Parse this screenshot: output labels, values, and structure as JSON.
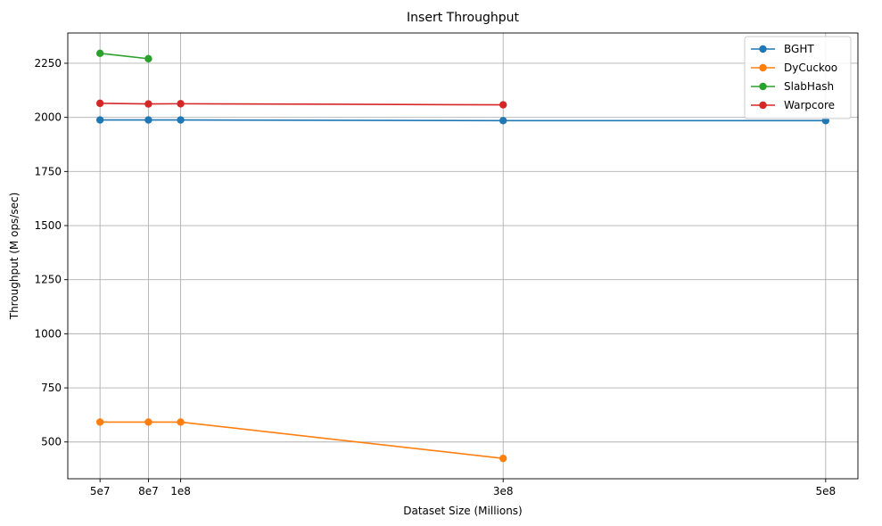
{
  "chart_data": {
    "type": "line",
    "title": "Insert Throughput",
    "xlabel": "Dataset Size (Millions)",
    "ylabel": "Throughput (M ops/sec)",
    "x_ticks": [
      {
        "value": 50000000,
        "label": "5e7"
      },
      {
        "value": 80000000,
        "label": "8e7"
      },
      {
        "value": 100000000,
        "label": "1e8"
      },
      {
        "value": 300000000,
        "label": "3e8"
      },
      {
        "value": 500000000,
        "label": "5e8"
      }
    ],
    "y_ticks": [
      500,
      750,
      1000,
      1250,
      1500,
      1750,
      2000,
      2250
    ],
    "xlim": [
      30000000,
      520000000
    ],
    "ylim": [
      330,
      2390
    ],
    "grid": true,
    "legend_position": "top-right",
    "series": [
      {
        "name": "BGHT",
        "color": "#1f77b4",
        "x": [
          50000000,
          80000000,
          100000000,
          300000000,
          500000000
        ],
        "y": [
          1988,
          1988,
          1988,
          1985,
          1985
        ]
      },
      {
        "name": "DyCuckoo",
        "color": "#ff7f0e",
        "x": [
          50000000,
          80000000,
          100000000,
          300000000
        ],
        "y": [
          592,
          592,
          592,
          424
        ]
      },
      {
        "name": "SlabHash",
        "color": "#2ca02c",
        "x": [
          50000000,
          80000000
        ],
        "y": [
          2296,
          2271
        ]
      },
      {
        "name": "Warpcore",
        "color": "#d62728",
        "x": [
          50000000,
          80000000,
          100000000,
          300000000
        ],
        "y": [
          2065,
          2062,
          2063,
          2058
        ]
      }
    ]
  }
}
